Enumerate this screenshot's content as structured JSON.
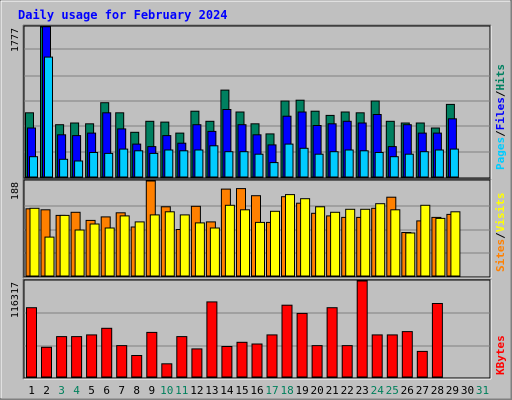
{
  "title": "Daily usage for February 2024",
  "colors": {
    "hits": "#00ccff",
    "files": "#0000ff",
    "pages": "#008060",
    "visits": "#ff8000",
    "sites": "#ffff00",
    "kbytes": "#ff0000",
    "bg": "#c0c0c0",
    "weekend": "#00805c"
  },
  "chart_data": [
    {
      "type": "bar",
      "name": "hits-files-pages",
      "max_label": "1777",
      "categories": [
        "1",
        "2",
        "3",
        "4",
        "5",
        "6",
        "7",
        "8",
        "9",
        "10",
        "11",
        "12",
        "13",
        "14",
        "15",
        "16",
        "17",
        "18",
        "19",
        "20",
        "21",
        "22",
        "23",
        "24",
        "25",
        "26",
        "27",
        "28",
        "29",
        "30",
        "31"
      ],
      "weekend_days": [
        "3",
        "4",
        "10",
        "11",
        "17",
        "18",
        "24",
        "25",
        "31"
      ],
      "ylim": [
        0,
        1777
      ],
      "legend_right": [
        "Pages",
        "/",
        "Files",
        "/",
        "Hits"
      ],
      "series": [
        {
          "name": "Pages",
          "values": [
            760,
            1777,
            620,
            640,
            630,
            880,
            760,
            530,
            660,
            650,
            520,
            780,
            660,
            1030,
            770,
            630,
            510,
            900,
            910,
            780,
            730,
            770,
            760,
            900,
            660,
            640,
            640,
            580,
            860,
            0,
            0
          ]
        },
        {
          "name": "Files",
          "values": [
            580,
            1780,
            500,
            490,
            520,
            760,
            570,
            390,
            360,
            490,
            400,
            620,
            540,
            800,
            620,
            500,
            380,
            720,
            770,
            610,
            630,
            660,
            640,
            740,
            360,
            620,
            520,
            520,
            690,
            0,
            0
          ]
        },
        {
          "name": "Hits",
          "values": [
            240,
            1420,
            210,
            190,
            290,
            280,
            330,
            310,
            280,
            320,
            310,
            320,
            370,
            300,
            300,
            270,
            170,
            390,
            340,
            270,
            300,
            320,
            310,
            290,
            240,
            270,
            300,
            320,
            330,
            0,
            0
          ]
        }
      ]
    },
    {
      "type": "bar",
      "name": "visits-sites",
      "max_label": "188",
      "categories": [
        "1",
        "2",
        "3",
        "4",
        "5",
        "6",
        "7",
        "8",
        "9",
        "10",
        "11",
        "12",
        "13",
        "14",
        "15",
        "16",
        "17",
        "18",
        "19",
        "20",
        "21",
        "22",
        "23",
        "24",
        "25",
        "26",
        "27",
        "28",
        "29",
        "30",
        "31"
      ],
      "ylim": [
        0,
        188
      ],
      "legend_right": [
        "Sites",
        "/",
        "Visits"
      ],
      "series": [
        {
          "name": "Visits",
          "values": [
            133,
            131,
            120,
            126,
            110,
            117,
            125,
            97,
            188,
            137,
            92,
            138,
            107,
            172,
            173,
            159,
            106,
            157,
            144,
            124,
            119,
            116,
            116,
            134,
            156,
            86,
            109,
            116,
            122,
            0,
            0
          ]
        },
        {
          "name": "Sites",
          "values": [
            134,
            77,
            120,
            91,
            103,
            95,
            119,
            107,
            121,
            127,
            121,
            105,
            95,
            140,
            131,
            106,
            128,
            161,
            153,
            137,
            126,
            132,
            132,
            143,
            131,
            85,
            140,
            114,
            127,
            0,
            0
          ]
        }
      ]
    },
    {
      "type": "bar",
      "name": "kbytes",
      "max_label": "116317",
      "categories": [
        "1",
        "2",
        "3",
        "4",
        "5",
        "6",
        "7",
        "8",
        "9",
        "10",
        "11",
        "12",
        "13",
        "14",
        "15",
        "16",
        "17",
        "18",
        "19",
        "20",
        "21",
        "22",
        "23",
        "24",
        "25",
        "26",
        "27",
        "28",
        "29",
        "30",
        "31"
      ],
      "ylim": [
        0,
        116317
      ],
      "legend_right": [
        "KBytes"
      ],
      "series": [
        {
          "name": "KBytes",
          "values": [
            84000,
            36000,
            49000,
            49000,
            51000,
            59000,
            38000,
            26000,
            54000,
            16000,
            49000,
            34000,
            91000,
            37000,
            42000,
            40000,
            51000,
            87000,
            77000,
            38000,
            84000,
            38000,
            116317,
            51000,
            51000,
            55000,
            31000,
            89000,
            0,
            0,
            0
          ]
        }
      ]
    }
  ]
}
